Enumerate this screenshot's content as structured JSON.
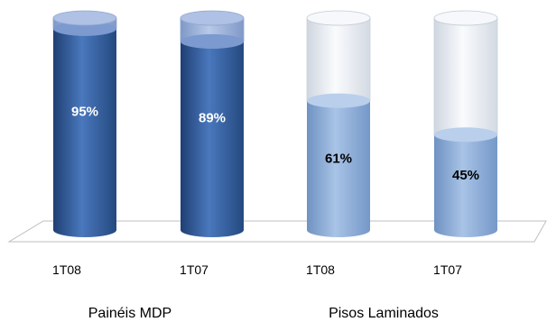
{
  "chart_data": {
    "type": "bar",
    "style": "3d-cylinder-stacked-100",
    "categories": [
      "1T08",
      "1T07",
      "1T08",
      "1T07"
    ],
    "groups": [
      {
        "label": "Painéis MDP",
        "categories": [
          0,
          1
        ]
      },
      {
        "label": "Pisos Laminados",
        "categories": [
          2,
          3
        ]
      }
    ],
    "values": [
      95,
      89,
      61,
      45
    ],
    "value_labels": [
      "95%",
      "89%",
      "61%",
      "45%"
    ],
    "ylim": [
      0,
      100
    ],
    "grid": false,
    "legend": false,
    "colors": {
      "mdp_fill": "#3A64A3",
      "mdp_top": "#A3B7DE",
      "laminados_fill": "#92B3DC",
      "laminados_empty": "#ECF0F5",
      "label_light": "#ffffff",
      "label_dark": "#000000"
    }
  }
}
